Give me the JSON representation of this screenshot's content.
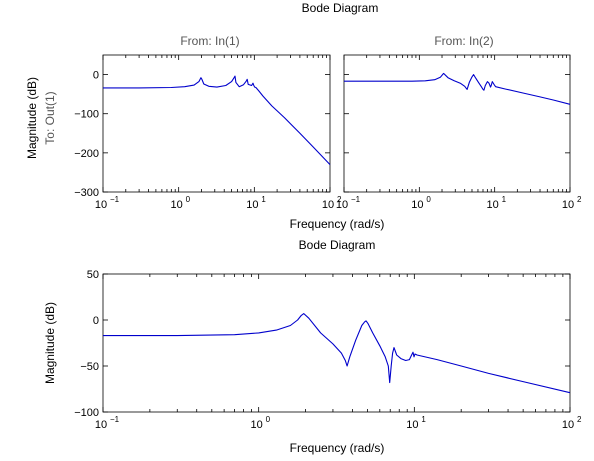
{
  "colors": {
    "line": "#0000cc",
    "axes": "#000000",
    "subtitle": "#555555"
  },
  "chart_data": [
    {
      "type": "line",
      "title": "Bode Diagram",
      "xlabel": "Frequency  (rad/s)",
      "ylabel": "Magnitude (dB)",
      "row_label": "To: Out(1)",
      "xscale": "log",
      "xlim": [
        0.1,
        100
      ],
      "x_ticks": [
        0.1,
        1,
        10,
        100
      ],
      "x_tick_labels": [
        [
          "10",
          "−1"
        ],
        [
          "10",
          "0"
        ],
        [
          "10",
          "1"
        ],
        [
          "10",
          "2"
        ]
      ],
      "grid": false,
      "panels": [
        {
          "label": "From: In(1)",
          "xlim": [
            0.1,
            100
          ],
          "ylim": [
            -300,
            50
          ],
          "y_ticks": [
            0,
            -100,
            -200,
            -300
          ],
          "y_tick_labels": [
            "0",
            "−100",
            "−200",
            "−300"
          ],
          "series": [
            {
              "x": [
                0.1,
                0.3,
                0.8,
                1.2,
                1.6,
                1.85,
                1.97,
                2.03,
                2.15,
                2.5,
                3.2,
                4.2,
                5.0,
                5.4,
                5.55,
                5.7,
                6.3,
                7.2,
                7.8,
                8.05,
                8.3,
                9.2,
                9.6,
                9.85,
                10.1,
                10.5,
                11.5,
                13,
                17,
                25,
                40,
                60,
                100
              ],
              "y": [
                -34,
                -34,
                -33,
                -31,
                -27,
                -18,
                -8,
                -12,
                -24,
                -30,
                -32,
                -28,
                -18,
                -8,
                -4,
                -20,
                -31,
                -26,
                -17,
                -12,
                -25,
                -28,
                -22,
                -28,
                -32,
                -33,
                -42,
                -55,
                -80,
                -110,
                -150,
                -185,
                -230
              ]
            }
          ]
        },
        {
          "label": "From: In(2)",
          "xlim": [
            0.1,
            100
          ],
          "ylim": [
            -300,
            50
          ],
          "series": [
            {
              "x": [
                0.1,
                0.3,
                0.8,
                1.2,
                1.6,
                1.9,
                2.1,
                2.4,
                2.9,
                3.5,
                4.0,
                4.3,
                4.6,
                5.0,
                5.25,
                5.6,
                6.1,
                6.6,
                7.0,
                7.2,
                7.5,
                8.0,
                8.4,
                8.8,
                9.0,
                9.3,
                9.8,
                10.3,
                14,
                25,
                40,
                60,
                100
              ],
              "y": [
                -17,
                -17,
                -17,
                -16,
                -13,
                -7,
                3,
                -8,
                -16,
                -22,
                -30,
                -38,
                -20,
                -6,
                0,
                -9,
                -20,
                -30,
                -38,
                -40,
                -28,
                -18,
                -22,
                -32,
                -28,
                -18,
                -25,
                -31,
                -37,
                -48,
                -57,
                -65,
                -76
              ]
            }
          ]
        }
      ]
    },
    {
      "type": "line",
      "title": "Bode Diagram",
      "xlabel": "Frequency  (rad/s)",
      "ylabel": "Magnitude (dB)",
      "xscale": "log",
      "xlim": [
        0.1,
        100
      ],
      "ylim": [
        -100,
        50
      ],
      "x_ticks": [
        0.1,
        1,
        10,
        100
      ],
      "x_tick_labels": [
        [
          "10",
          "−1"
        ],
        [
          "10",
          "0"
        ],
        [
          "10",
          "1"
        ],
        [
          "10",
          "2"
        ]
      ],
      "y_ticks": [
        50,
        0,
        -50,
        -100
      ],
      "y_tick_labels": [
        "50",
        "0",
        "−50",
        "−100"
      ],
      "grid": false,
      "series": [
        {
          "x": [
            0.1,
            0.3,
            0.7,
            1.0,
            1.3,
            1.6,
            1.78,
            1.88,
            1.95,
            2.1,
            2.5,
            3.0,
            3.4,
            3.6,
            3.7,
            3.85,
            4.2,
            4.6,
            4.8,
            4.9,
            5.05,
            5.4,
            6.0,
            6.5,
            6.8,
            6.95,
            7.1,
            7.25,
            7.4,
            7.7,
            8.2,
            8.8,
            9.3,
            9.6,
            9.8,
            9.95,
            10.1,
            10.4,
            11,
            14,
            20,
            30,
            50,
            100
          ],
          "y": [
            -17,
            -17,
            -16,
            -14,
            -11,
            -6,
            0,
            5,
            7,
            2,
            -14,
            -26,
            -36,
            -44,
            -50,
            -40,
            -22,
            -6,
            -2,
            -1,
            -4,
            -14,
            -28,
            -40,
            -50,
            -68,
            -50,
            -36,
            -30,
            -38,
            -42,
            -44,
            -43,
            -38,
            -35,
            -40,
            -37,
            -38,
            -39,
            -43,
            -50,
            -58,
            -67,
            -79
          ]
        }
      ]
    }
  ]
}
